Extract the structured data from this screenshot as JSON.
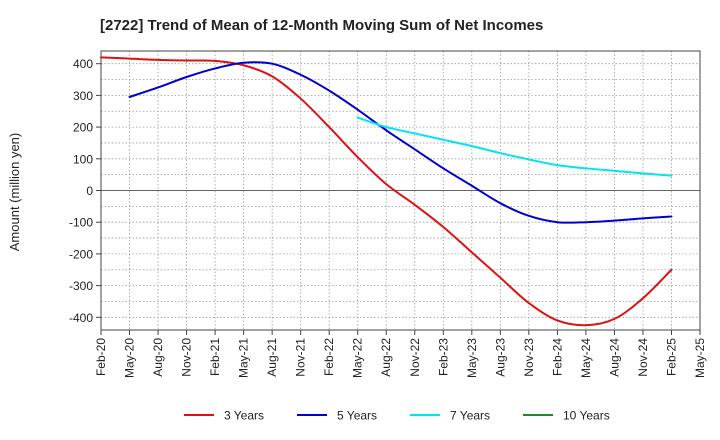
{
  "chart_data": {
    "type": "line",
    "title": "[2722]  Trend of Mean of 12-Month Moving Sum of Net Incomes",
    "xlabel": "",
    "ylabel": "Amount (million yen)",
    "ylim": [
      -440,
      440
    ],
    "yticks": [
      400,
      300,
      200,
      100,
      0,
      -100,
      -200,
      -300,
      -400
    ],
    "ytick_labels": [
      "400",
      "300",
      "200",
      "100",
      "0",
      "-100",
      "-200",
      "-300",
      "-400"
    ],
    "categories": [
      "Feb-20",
      "May-20",
      "Aug-20",
      "Nov-20",
      "Feb-21",
      "May-21",
      "Aug-21",
      "Nov-21",
      "Feb-22",
      "May-22",
      "Aug-22",
      "Nov-22",
      "Feb-23",
      "May-23",
      "Aug-23",
      "Nov-23",
      "Feb-24",
      "May-24",
      "Aug-24",
      "Nov-24",
      "Feb-25",
      "May-25"
    ],
    "grid": true,
    "legend": "bottom",
    "series": [
      {
        "name": "3 Years",
        "color": "#dd1111",
        "values": [
          420,
          416,
          412,
          410,
          409,
          395,
          360,
          290,
          200,
          105,
          20,
          -45,
          -115,
          -195,
          -275,
          -355,
          -410,
          -425,
          -405,
          -340,
          -250,
          null
        ]
      },
      {
        "name": "5 Years",
        "color": "#0000cc",
        "values": [
          null,
          295,
          325,
          358,
          385,
          403,
          400,
          365,
          315,
          255,
          190,
          130,
          70,
          15,
          -40,
          -80,
          -100,
          -100,
          -95,
          -88,
          -82,
          null
        ]
      },
      {
        "name": "7 Years",
        "color": "#00e5ee",
        "values": [
          null,
          null,
          null,
          null,
          null,
          null,
          null,
          null,
          null,
          230,
          200,
          180,
          160,
          140,
          118,
          98,
          80,
          70,
          62,
          54,
          47,
          null
        ]
      },
      {
        "name": "10 Years",
        "color": "#228822",
        "values": [
          null,
          null,
          null,
          null,
          null,
          null,
          null,
          null,
          null,
          null,
          null,
          null,
          null,
          null,
          null,
          null,
          null,
          null,
          null,
          null,
          null,
          null
        ]
      }
    ]
  }
}
